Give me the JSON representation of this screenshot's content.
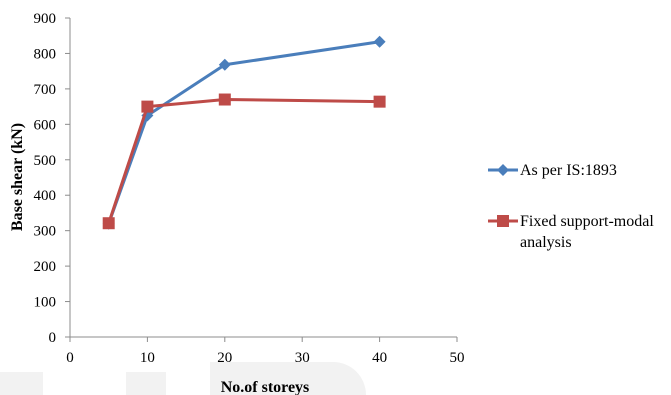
{
  "chart_data": {
    "type": "line",
    "title": "",
    "xlabel": "No.of storeys",
    "ylabel": "Base shear (kN)",
    "xlim": [
      0,
      50
    ],
    "ylim": [
      0,
      900
    ],
    "xticks": [
      0,
      10,
      20,
      30,
      40,
      50
    ],
    "yticks": [
      0,
      100,
      200,
      300,
      400,
      500,
      600,
      700,
      800,
      900
    ],
    "xtick_labels": [
      "0",
      "10",
      "20",
      "30",
      "40",
      "50"
    ],
    "ytick_labels": [
      "0",
      "100",
      "200",
      "300",
      "400",
      "500",
      "600",
      "700",
      "800",
      "900"
    ],
    "grid": false,
    "legend_position": "right",
    "series": [
      {
        "name": "As per IS:1893",
        "color": "#4a7ebb",
        "marker": "diamond",
        "x": [
          5,
          10,
          20,
          40
        ],
        "y": [
          320,
          625,
          768,
          833
        ]
      },
      {
        "name": "Fixed support-modal analysis",
        "color": "#be4b48",
        "marker": "square",
        "x": [
          5,
          10,
          20,
          40
        ],
        "y": [
          321,
          650,
          670,
          664
        ]
      }
    ]
  }
}
